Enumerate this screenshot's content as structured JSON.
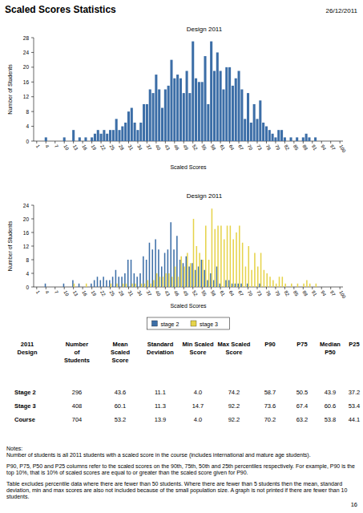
{
  "header": {
    "title": "Scaled Scores Statistics",
    "date": "26/12/2011"
  },
  "chart_data": [
    {
      "type": "bar",
      "title": "Design 2011",
      "x_label": "Scaled Scores",
      "y_label": "Number of Students",
      "x": [
        1,
        2,
        3,
        4,
        5,
        6,
        7,
        8,
        9,
        10,
        11,
        12,
        13,
        14,
        15,
        16,
        17,
        18,
        19,
        20,
        21,
        22,
        23,
        24,
        25,
        26,
        27,
        28,
        29,
        30,
        31,
        32,
        33,
        34,
        35,
        36,
        37,
        38,
        39,
        40,
        41,
        42,
        43,
        44,
        45,
        46,
        47,
        48,
        49,
        50,
        51,
        52,
        53,
        54,
        55,
        56,
        57,
        58,
        59,
        60,
        61,
        62,
        63,
        64,
        65,
        66,
        67,
        68,
        69,
        70,
        71,
        72,
        73,
        74,
        75,
        76,
        77,
        78,
        79,
        80,
        81,
        82,
        83,
        84,
        85,
        86,
        87,
        88,
        89,
        90,
        91,
        92,
        93,
        94,
        95,
        96,
        97,
        98,
        99,
        100
      ],
      "values": [
        0,
        0,
        0,
        1,
        0,
        0,
        0,
        0,
        0,
        1,
        0,
        0,
        3,
        0,
        1,
        0,
        1,
        0,
        1,
        2,
        3,
        2,
        3,
        2,
        3,
        3,
        6,
        3,
        4,
        5,
        8,
        9,
        5,
        3,
        5,
        10,
        10,
        14,
        13,
        18,
        14,
        9,
        14,
        15,
        22,
        17,
        18,
        17,
        13,
        19,
        13,
        27,
        17,
        16,
        16,
        23,
        10,
        27,
        19,
        24,
        19,
        14,
        20,
        20,
        15,
        17,
        19,
        14,
        6,
        13,
        5,
        10,
        6,
        11,
        5,
        4,
        3,
        2,
        1,
        3,
        3,
        1,
        0,
        1,
        0,
        1,
        0,
        1,
        2,
        1,
        0,
        1,
        0,
        0,
        0,
        0,
        0,
        0,
        0,
        0
      ],
      "color": "#3c6ea7",
      "xlim": [
        0,
        101
      ],
      "xticks": [
        1,
        4,
        7,
        10,
        13,
        16,
        19,
        22,
        25,
        28,
        31,
        34,
        37,
        40,
        43,
        46,
        49,
        52,
        55,
        58,
        61,
        64,
        67,
        70,
        73,
        76,
        79,
        82,
        85,
        88,
        91,
        94,
        97,
        100
      ],
      "ylim": [
        0,
        28
      ],
      "yticks": [
        0,
        4,
        8,
        12,
        16,
        20,
        24,
        28
      ],
      "grid": false
    },
    {
      "type": "bar",
      "title": "Design 2011",
      "x_label": "Scaled Scores",
      "y_label": "Number of Students",
      "x": [
        1,
        2,
        3,
        4,
        5,
        6,
        7,
        8,
        9,
        10,
        11,
        12,
        13,
        14,
        15,
        16,
        17,
        18,
        19,
        20,
        21,
        22,
        23,
        24,
        25,
        26,
        27,
        28,
        29,
        30,
        31,
        32,
        33,
        34,
        35,
        36,
        37,
        38,
        39,
        40,
        41,
        42,
        43,
        44,
        45,
        46,
        47,
        48,
        49,
        50,
        51,
        52,
        53,
        54,
        55,
        56,
        57,
        58,
        59,
        60,
        61,
        62,
        63,
        64,
        65,
        66,
        67,
        68,
        69,
        70,
        71,
        72,
        73,
        74,
        75,
        76,
        77,
        78,
        79,
        80,
        81,
        82,
        83,
        84,
        85,
        86,
        87,
        88,
        89,
        90,
        91,
        92,
        93,
        94,
        95,
        96,
        97,
        98,
        99,
        100
      ],
      "series": [
        {
          "name": "stage 2",
          "color": "#3c6ea7",
          "values": [
            0,
            0,
            0,
            1,
            0,
            0,
            0,
            0,
            0,
            1,
            0,
            0,
            2,
            0,
            1,
            0,
            0,
            0,
            1,
            2,
            3,
            2,
            3,
            2,
            2,
            3,
            5,
            3,
            3,
            4,
            8,
            8,
            4,
            3,
            4,
            9,
            8,
            13,
            11,
            14,
            11,
            6,
            10,
            11,
            19,
            11,
            15,
            8,
            7,
            9,
            6,
            7,
            5,
            6,
            8,
            5,
            2,
            4,
            2,
            6,
            1,
            0,
            2,
            2,
            1,
            1,
            1,
            1,
            0,
            1,
            0,
            0,
            0,
            1,
            0,
            0,
            0,
            0,
            0,
            0,
            0,
            0,
            0,
            0,
            0,
            0,
            0,
            0,
            0,
            0,
            0,
            0,
            0,
            0,
            0,
            0,
            0,
            0,
            0,
            0
          ]
        },
        {
          "name": "stage 3",
          "color": "#e6d34a",
          "values": [
            0,
            0,
            0,
            0,
            0,
            0,
            0,
            0,
            0,
            0,
            0,
            0,
            1,
            0,
            0,
            0,
            1,
            0,
            0,
            0,
            0,
            0,
            0,
            0,
            1,
            0,
            1,
            0,
            1,
            1,
            0,
            1,
            1,
            0,
            1,
            1,
            2,
            1,
            2,
            4,
            3,
            3,
            4,
            4,
            3,
            6,
            3,
            9,
            6,
            10,
            7,
            20,
            12,
            10,
            8,
            18,
            8,
            23,
            17,
            18,
            18,
            14,
            18,
            18,
            14,
            16,
            18,
            13,
            6,
            12,
            5,
            10,
            6,
            10,
            5,
            4,
            3,
            2,
            1,
            3,
            3,
            1,
            0,
            1,
            0,
            1,
            0,
            1,
            2,
            1,
            0,
            1,
            0,
            0,
            0,
            0,
            0,
            0,
            0,
            0
          ]
        }
      ],
      "xlim": [
        0,
        101
      ],
      "xticks": [
        1,
        4,
        7,
        10,
        13,
        16,
        19,
        22,
        25,
        28,
        31,
        34,
        37,
        40,
        43,
        46,
        49,
        52,
        55,
        58,
        61,
        64,
        67,
        70,
        73,
        76,
        79,
        82,
        85,
        88,
        91,
        94,
        97,
        100
      ],
      "ylim": [
        0,
        24
      ],
      "yticks": [
        0,
        4,
        8,
        12,
        16,
        20,
        24
      ],
      "grid": false,
      "legend": "bottom"
    }
  ],
  "table": {
    "columns": [
      [
        "2011",
        "Design"
      ],
      [
        "Number",
        "of",
        "Students"
      ],
      [
        "Mean",
        "Scaled",
        "Score"
      ],
      [
        "Standard",
        "Deviation"
      ],
      [
        "Min Scaled",
        "Score"
      ],
      [
        "Max Scaled",
        "Score"
      ],
      [
        "P90"
      ],
      [
        "P75"
      ],
      [
        "Median",
        "P50"
      ],
      [
        "P25"
      ]
    ],
    "rows": [
      [
        "Stage 2",
        "296",
        "43.6",
        "11.1",
        "4.0",
        "74.2",
        "58.7",
        "50.5",
        "43.9",
        "37.2"
      ],
      [
        "Stage 3",
        "408",
        "60.1",
        "11.3",
        "14.7",
        "92.2",
        "73.6",
        "67.4",
        "60.6",
        "53.4"
      ],
      [
        "Course",
        "704",
        "53.2",
        "13.9",
        "4.0",
        "92.2",
        "70.2",
        "63.2",
        "53.8",
        "44.1"
      ]
    ]
  },
  "notes": {
    "heading": "Notes:",
    "paragraphs": [
      "Number of students is all 2011 students with a scaled score in the course (includes international and mature age students).",
      "P90, P75, P50 and P25 columns refer to the scaled scores on the 90th, 75th, 50th and 25th percentiles respectively.  For example, P90 is the top 10%, that is 10% of scaled scores are equal to or greater than the scaled score given for P90.",
      "Table excludes percentile data where there are fewer than 50 students.  Where there are fewer than 5 students then the mean, standard deviation, min and max scores are also not included because of the small population size.  A graph is not printed if there are fewer than 10 students."
    ]
  },
  "page_number": "16"
}
